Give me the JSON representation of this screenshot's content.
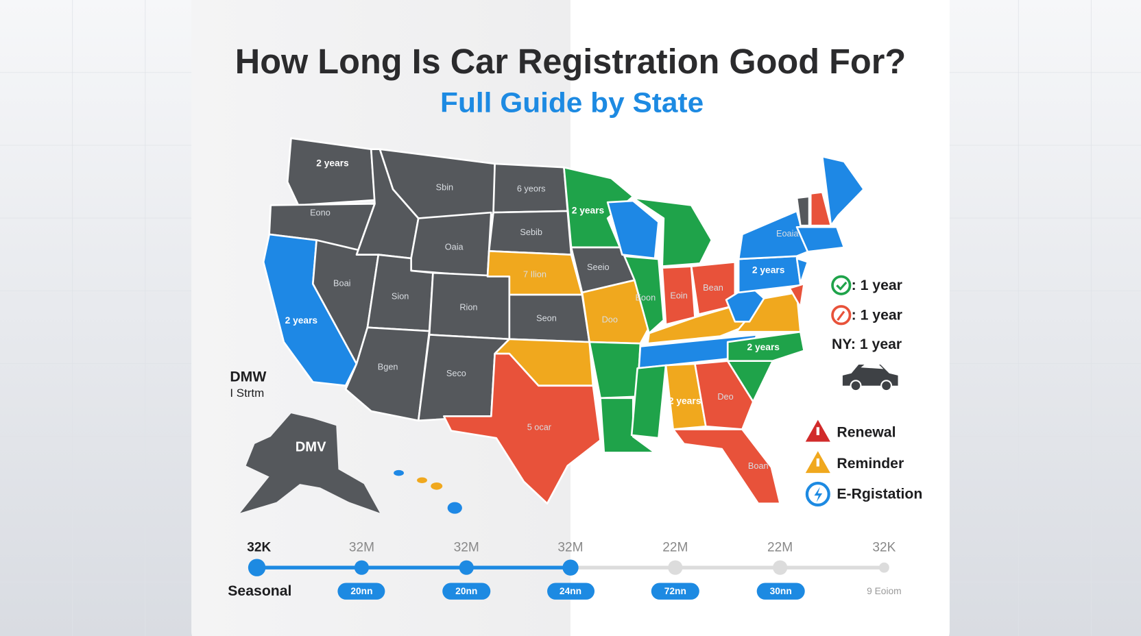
{
  "header": {
    "title": "How Long Is Car Registration Good For?",
    "subtitle": "Full Guide by State"
  },
  "map": {
    "state_labels": [
      "2 years",
      "Eono",
      "Sbin",
      "6 yeors",
      "Sebib",
      "Oaia",
      "Boai",
      "Sion",
      "Rion",
      "2 years",
      "7 Ilion",
      "Seon",
      "Bgen",
      "Seco",
      "5 ocar",
      "2 years",
      "Seeio",
      "Doo",
      "Eoin",
      "Bean",
      "Eoon",
      "2 years",
      "2 years",
      "2 years",
      "Deo",
      "Boan",
      "Eoaia"
    ],
    "side_labels": [
      "DMW",
      "I Strtm",
      "DMV"
    ]
  },
  "legend": {
    "items": [
      ": 1 year",
      ": 1 year",
      "NY: 1 year"
    ],
    "actions": [
      "Renewal",
      "Reminder",
      "E-Rgistation"
    ]
  },
  "timeline": {
    "label": "Seasonal",
    "tops": [
      "32K",
      "32M",
      "32M",
      "32M",
      "22M",
      "22M",
      "32K"
    ],
    "pills": [
      "20nn",
      "20nn",
      "24nn",
      "72nn",
      "30nn"
    ],
    "end_note": "9 Eoiom"
  }
}
